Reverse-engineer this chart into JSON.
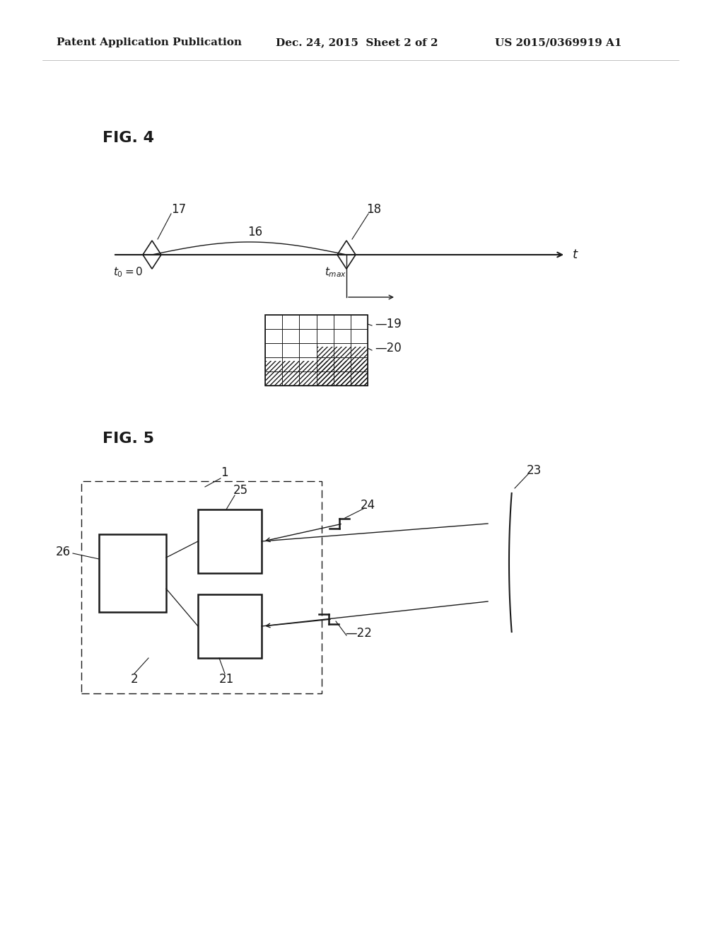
{
  "bg_color": "#ffffff",
  "text_color": "#1a1a1a",
  "header_left": "Patent Application Publication",
  "header_center": "Dec. 24, 2015  Sheet 2 of 2",
  "header_right": "US 2015/0369919 A1",
  "fig4_label": "FIG. 4",
  "fig5_label": "FIG. 5"
}
